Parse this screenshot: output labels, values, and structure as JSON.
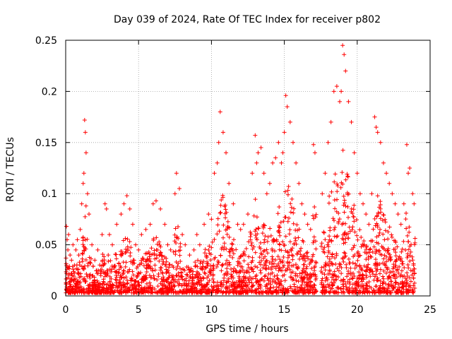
{
  "chart_data": {
    "type": "scatter",
    "title": "Day 039 of 2024, Rate Of TEC Index for receiver p802",
    "xlabel": "GPS time / hours",
    "ylabel": "ROTI / TECUs",
    "xlim": [
      0,
      25
    ],
    "ylim": [
      0,
      0.25
    ],
    "xticks": [
      0,
      5,
      10,
      15,
      20,
      25
    ],
    "xtick_labels": [
      "0",
      "5",
      "10",
      "15",
      "20",
      "25"
    ],
    "yticks": [
      0,
      0.05,
      0.1,
      0.15,
      0.2,
      0.25
    ],
    "ytick_labels": [
      "0",
      "0.05",
      "0.1",
      "0.15",
      "0.2",
      "0.25"
    ],
    "grid": true,
    "marker": "+",
    "color": "#ff0000",
    "data_gap_hours": [
      17.2,
      17.5
    ],
    "series": [
      {
        "name": "ROTI",
        "x": [
          0.05,
          0.1,
          0.15,
          0.2,
          0.3,
          0.4,
          0.5,
          0.6,
          0.7,
          0.8,
          0.9,
          1.0,
          1.1,
          1.2,
          1.25,
          1.3,
          1.35,
          1.4,
          1.5,
          1.6,
          1.8,
          2.0,
          2.2,
          2.5,
          2.7,
          2.8,
          3.0,
          3.2,
          3.5,
          3.8,
          4.0,
          4.2,
          4.4,
          4.6,
          4.8,
          5.0,
          5.2,
          5.5,
          5.8,
          6.0,
          6.2,
          6.5,
          6.8,
          7.0,
          7.2,
          7.5,
          7.6,
          7.8,
          8.0,
          8.2,
          8.5,
          8.8,
          9.0,
          9.2,
          9.5,
          9.8,
          10.0,
          10.2,
          10.4,
          10.5,
          10.6,
          10.8,
          11.0,
          11.2,
          11.5,
          11.8,
          12.0,
          12.2,
          12.5,
          12.8,
          13.0,
          13.1,
          13.2,
          13.4,
          13.6,
          13.8,
          14.0,
          14.2,
          14.4,
          14.6,
          14.8,
          14.9,
          15.0,
          15.1,
          15.2,
          15.4,
          15.6,
          15.8,
          16.0,
          16.2,
          16.4,
          16.6,
          16.8,
          17.0,
          17.1,
          17.6,
          17.8,
          18.0,
          18.2,
          18.4,
          18.6,
          18.8,
          18.9,
          19.0,
          19.1,
          19.2,
          19.4,
          19.6,
          19.8,
          20.0,
          20.2,
          20.4,
          20.6,
          20.8,
          21.0,
          21.2,
          21.3,
          21.4,
          21.6,
          21.8,
          22.0,
          22.2,
          22.4,
          22.6,
          22.8,
          23.0,
          23.2,
          23.4,
          23.5,
          23.6,
          23.8,
          23.9
        ],
        "y": [
          0.068,
          0.055,
          0.045,
          0.06,
          0.04,
          0.035,
          0.05,
          0.03,
          0.045,
          0.055,
          0.04,
          0.065,
          0.09,
          0.11,
          0.12,
          0.172,
          0.16,
          0.14,
          0.1,
          0.08,
          0.05,
          0.035,
          0.045,
          0.06,
          0.09,
          0.085,
          0.06,
          0.05,
          0.07,
          0.08,
          0.09,
          0.098,
          0.085,
          0.07,
          0.05,
          0.045,
          0.06,
          0.065,
          0.07,
          0.09,
          0.093,
          0.085,
          0.07,
          0.05,
          0.045,
          0.1,
          0.12,
          0.105,
          0.06,
          0.05,
          0.04,
          0.045,
          0.06,
          0.05,
          0.07,
          0.08,
          0.075,
          0.12,
          0.13,
          0.15,
          0.18,
          0.16,
          0.14,
          0.11,
          0.09,
          0.07,
          0.065,
          0.07,
          0.08,
          0.12,
          0.157,
          0.13,
          0.14,
          0.145,
          0.12,
          0.1,
          0.11,
          0.13,
          0.135,
          0.15,
          0.13,
          0.14,
          0.16,
          0.196,
          0.185,
          0.17,
          0.15,
          0.13,
          0.11,
          0.09,
          0.08,
          0.07,
          0.065,
          0.148,
          0.14,
          0.1,
          0.12,
          0.15,
          0.17,
          0.2,
          0.205,
          0.19,
          0.2,
          0.245,
          0.236,
          0.22,
          0.19,
          0.17,
          0.14,
          0.12,
          0.1,
          0.09,
          0.08,
          0.07,
          0.1,
          0.175,
          0.165,
          0.16,
          0.15,
          0.13,
          0.12,
          0.11,
          0.1,
          0.09,
          0.08,
          0.07,
          0.09,
          0.148,
          0.12,
          0.125,
          0.1,
          0.09
        ]
      }
    ]
  }
}
